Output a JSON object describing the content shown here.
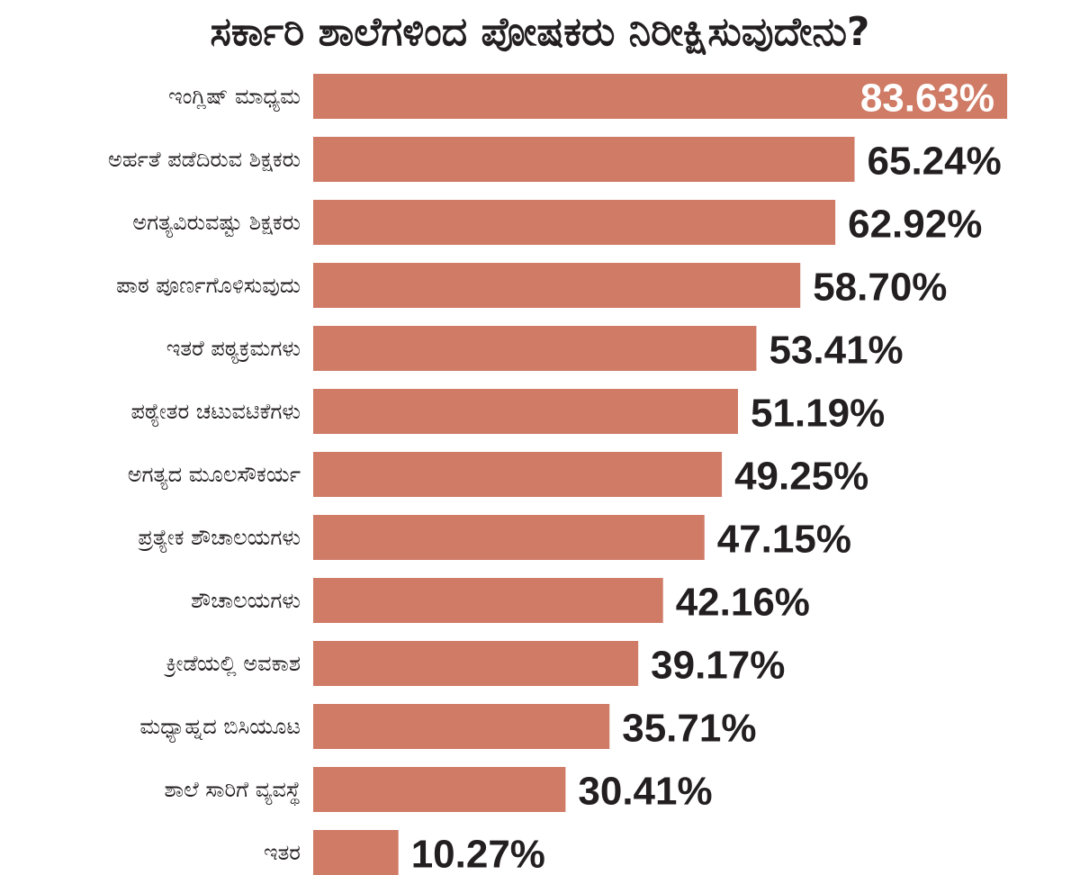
{
  "chart_data": {
    "type": "bar",
    "orientation": "horizontal",
    "title": "ಸರ್ಕಾರಿ ಶಾಲೆಗಳಿಂದ ಪೋಷಕರು ನಿರೀಕ್ಷಿಸುವುದೇನು?",
    "categories": [
      "ಇಂಗ್ಲಿಷ್ ಮಾಧ್ಯಮ",
      "ಅರ್ಹತೆ ಪಡೆದಿರುವ ಶಿಕ್ಷಕರು",
      "ಅಗತ್ಯವಿರುವಷ್ಟು ಶಿಕ್ಷಕರು",
      "ಪಾಠ ಪೂರ್ಣಗೊಳಿಸುವುದು",
      "ಇತರೆ ಪಠ್ಯಕ್ರಮಗಳು",
      "ಪಠ್ಯೇತರ ಚಟುವಟಿಕೆಗಳು",
      "ಅಗತ್ಯದ ಮೂಲಸೌಕರ್ಯ",
      "ಪ್ರತ್ಯೇಕ ಶೌಚಾಲಯಗಳು",
      "ಶೌಚಾಲಯಗಳು",
      "ಕ್ರೀಡೆಯಲ್ಲಿ ಅವಕಾಶ",
      "ಮಧ್ಯಾಹ್ನದ ಬಿಸಿಯೂಟ",
      "ಶಾಲೆ ಸಾರಿಗೆ ವ್ಯವಸ್ಥೆ",
      "ಇತರ"
    ],
    "values": [
      83.63,
      65.24,
      62.92,
      58.7,
      53.41,
      51.19,
      49.25,
      47.15,
      42.16,
      39.17,
      35.71,
      30.41,
      10.27
    ],
    "value_labels": [
      "83.63%",
      "65.24%",
      "62.92%",
      "58.70%",
      "53.41%",
      "51.19%",
      "49.25%",
      "47.15%",
      "42.16%",
      "39.17%",
      "35.71%",
      "30.41%",
      "10.27%"
    ],
    "unit": "%",
    "xlim": [
      0,
      100
    ],
    "grid": false,
    "legend": "none",
    "bar_color": "#cf7b66",
    "text_color": "#231f20"
  }
}
